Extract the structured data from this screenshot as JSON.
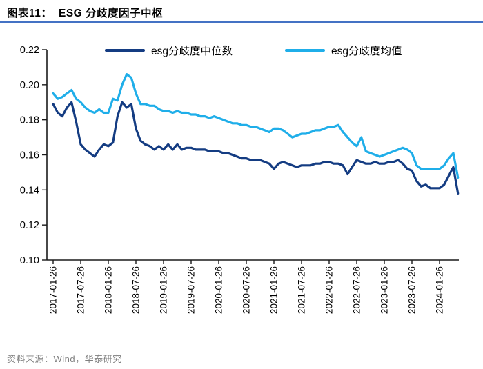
{
  "header": {
    "title": "图表11：  ESG 分歧度因子中枢"
  },
  "footer": {
    "source": "资料来源：Wind，华泰研究"
  },
  "colors": {
    "median_line": "#143C82",
    "mean_line": "#1FAEE9",
    "title_rule": "#4472C4",
    "axis": "#1A1A1A",
    "source_text": "#7F7F7F",
    "source_rule": "#C9CDD1"
  },
  "chart_data": {
    "type": "line",
    "title": "ESG 分歧度因子中枢",
    "xlabel": "",
    "ylabel": "",
    "ylim": [
      0.1,
      0.22
    ],
    "yticks": [
      0.1,
      0.12,
      0.14,
      0.16,
      0.18,
      0.2,
      0.22
    ],
    "grid": false,
    "legend_position": "top",
    "x_tick_labels": [
      "2017-01-26",
      "2017-07-26",
      "2018-01-26",
      "2018-07-26",
      "2019-01-26",
      "2019-07-26",
      "2020-01-26",
      "2020-07-26",
      "2021-01-26",
      "2021-07-26",
      "2022-01-26",
      "2022-07-26",
      "2023-01-26",
      "2023-07-26",
      "2024-01-26"
    ],
    "x": [
      "2017-01",
      "2017-02",
      "2017-03",
      "2017-04",
      "2017-05",
      "2017-06",
      "2017-07",
      "2017-08",
      "2017-09",
      "2017-10",
      "2017-11",
      "2017-12",
      "2018-01",
      "2018-02",
      "2018-03",
      "2018-04",
      "2018-05",
      "2018-06",
      "2018-07",
      "2018-08",
      "2018-09",
      "2018-10",
      "2018-11",
      "2018-12",
      "2019-01",
      "2019-02",
      "2019-03",
      "2019-04",
      "2019-05",
      "2019-06",
      "2019-07",
      "2019-08",
      "2019-09",
      "2019-10",
      "2019-11",
      "2019-12",
      "2020-01",
      "2020-02",
      "2020-03",
      "2020-04",
      "2020-05",
      "2020-06",
      "2020-07",
      "2020-08",
      "2020-09",
      "2020-10",
      "2020-11",
      "2020-12",
      "2021-01",
      "2021-02",
      "2021-03",
      "2021-04",
      "2021-05",
      "2021-06",
      "2021-07",
      "2021-08",
      "2021-09",
      "2021-10",
      "2021-11",
      "2021-12",
      "2022-01",
      "2022-02",
      "2022-03",
      "2022-04",
      "2022-05",
      "2022-06",
      "2022-07",
      "2022-08",
      "2022-09",
      "2022-10",
      "2022-11",
      "2022-12",
      "2023-01",
      "2023-02",
      "2023-03",
      "2023-04",
      "2023-05",
      "2023-06",
      "2023-07",
      "2023-08",
      "2023-09",
      "2023-10",
      "2023-11",
      "2023-12",
      "2024-01",
      "2024-02",
      "2024-03",
      "2024-04",
      "2024-05"
    ],
    "series": [
      {
        "name": "esg分歧度中位数",
        "color": "#143C82",
        "values": [
          0.189,
          0.184,
          0.182,
          0.187,
          0.19,
          0.179,
          0.166,
          0.163,
          0.161,
          0.159,
          0.163,
          0.166,
          0.165,
          0.167,
          0.182,
          0.19,
          0.187,
          0.189,
          0.175,
          0.168,
          0.166,
          0.165,
          0.163,
          0.165,
          0.163,
          0.166,
          0.163,
          0.166,
          0.163,
          0.164,
          0.164,
          0.163,
          0.163,
          0.163,
          0.162,
          0.162,
          0.162,
          0.161,
          0.161,
          0.16,
          0.159,
          0.158,
          0.158,
          0.157,
          0.157,
          0.157,
          0.156,
          0.155,
          0.152,
          0.155,
          0.156,
          0.155,
          0.154,
          0.153,
          0.154,
          0.154,
          0.154,
          0.155,
          0.155,
          0.156,
          0.156,
          0.155,
          0.155,
          0.154,
          0.149,
          0.153,
          0.157,
          0.156,
          0.155,
          0.155,
          0.156,
          0.155,
          0.155,
          0.156,
          0.156,
          0.157,
          0.155,
          0.152,
          0.151,
          0.145,
          0.142,
          0.143,
          0.141,
          0.141,
          0.141,
          0.143,
          0.148,
          0.153,
          0.138
        ]
      },
      {
        "name": "esg分歧度均值",
        "color": "#1FAEE9",
        "values": [
          0.195,
          0.192,
          0.193,
          0.195,
          0.197,
          0.192,
          0.19,
          0.187,
          0.185,
          0.184,
          0.186,
          0.184,
          0.184,
          0.192,
          0.191,
          0.2,
          0.206,
          0.204,
          0.195,
          0.189,
          0.189,
          0.188,
          0.188,
          0.186,
          0.185,
          0.185,
          0.184,
          0.185,
          0.184,
          0.184,
          0.183,
          0.183,
          0.182,
          0.182,
          0.181,
          0.182,
          0.181,
          0.18,
          0.179,
          0.178,
          0.178,
          0.177,
          0.177,
          0.176,
          0.176,
          0.175,
          0.174,
          0.173,
          0.175,
          0.175,
          0.174,
          0.172,
          0.17,
          0.171,
          0.172,
          0.172,
          0.173,
          0.174,
          0.174,
          0.175,
          0.176,
          0.176,
          0.177,
          0.173,
          0.17,
          0.167,
          0.165,
          0.17,
          0.162,
          0.161,
          0.16,
          0.159,
          0.16,
          0.161,
          0.162,
          0.163,
          0.164,
          0.163,
          0.161,
          0.154,
          0.152,
          0.152,
          0.152,
          0.152,
          0.152,
          0.154,
          0.158,
          0.161,
          0.147
        ]
      }
    ]
  }
}
